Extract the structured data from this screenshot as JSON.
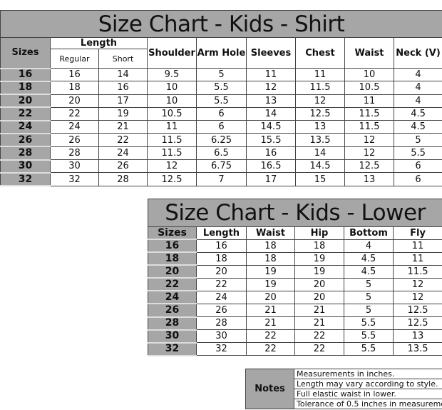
{
  "shirt": {
    "title": "Size Chart - Kids - Shirt",
    "headers": {
      "sizes": "Sizes",
      "length": "Length",
      "regular": "Regular",
      "short": "Short",
      "shoulder": "Shoulder",
      "arm_hole": "Arm Hole",
      "sleeves": "Sleeves",
      "chest": "Chest",
      "waist": "Waist",
      "neck": "Neck (V)"
    },
    "rows": [
      [
        "16",
        "16",
        "14",
        "9.5",
        "5",
        "11",
        "11",
        "10",
        "4"
      ],
      [
        "18",
        "18",
        "16",
        "10",
        "5.5",
        "12",
        "11.5",
        "10.5",
        "4"
      ],
      [
        "20",
        "20",
        "17",
        "10",
        "5.5",
        "13",
        "12",
        "11",
        "4"
      ],
      [
        "22",
        "22",
        "19",
        "10.5",
        "6",
        "14",
        "12.5",
        "11.5",
        "4.5"
      ],
      [
        "24",
        "24",
        "21",
        "11",
        "6",
        "14.5",
        "13",
        "11.5",
        "4.5"
      ],
      [
        "26",
        "26",
        "22",
        "11.5",
        "6.25",
        "15.5",
        "13.5",
        "12",
        "5"
      ],
      [
        "28",
        "28",
        "24",
        "11.5",
        "6.5",
        "16",
        "14",
        "12",
        "5.5"
      ],
      [
        "30",
        "30",
        "26",
        "12",
        "6.75",
        "16.5",
        "14.5",
        "12.5",
        "6"
      ],
      [
        "32",
        "32",
        "28",
        "12.5",
        "7",
        "17",
        "15",
        "13",
        "6"
      ]
    ]
  },
  "lower": {
    "title": "Size Chart - Kids - Lower",
    "headers": [
      "Sizes",
      "Length",
      "Waist",
      "Hip",
      "Bottom",
      "Fly"
    ],
    "rows": [
      [
        "16",
        "16",
        "18",
        "18",
        "4",
        "11"
      ],
      [
        "18",
        "18",
        "18",
        "19",
        "4.5",
        "11"
      ],
      [
        "20",
        "20",
        "19",
        "19",
        "4.5",
        "11.5"
      ],
      [
        "22",
        "22",
        "19",
        "20",
        "5",
        "12"
      ],
      [
        "24",
        "24",
        "20",
        "20",
        "5",
        "12"
      ],
      [
        "26",
        "26",
        "21",
        "21",
        "5",
        "12.5"
      ],
      [
        "28",
        "28",
        "21",
        "21",
        "5.5",
        "12.5"
      ],
      [
        "30",
        "30",
        "22",
        "22",
        "5.5",
        "13"
      ],
      [
        "32",
        "32",
        "22",
        "22",
        "5.5",
        "13.5"
      ]
    ]
  },
  "notes": {
    "label": "Notes",
    "items": [
      "Measurements in inches.",
      "Length may vary according to style.",
      "Full elastic waist in lower.",
      "Tolerance of 0.5 inches in measurement"
    ]
  },
  "colors": {
    "header_gray": "#a6a6a6",
    "border": "#444444"
  }
}
